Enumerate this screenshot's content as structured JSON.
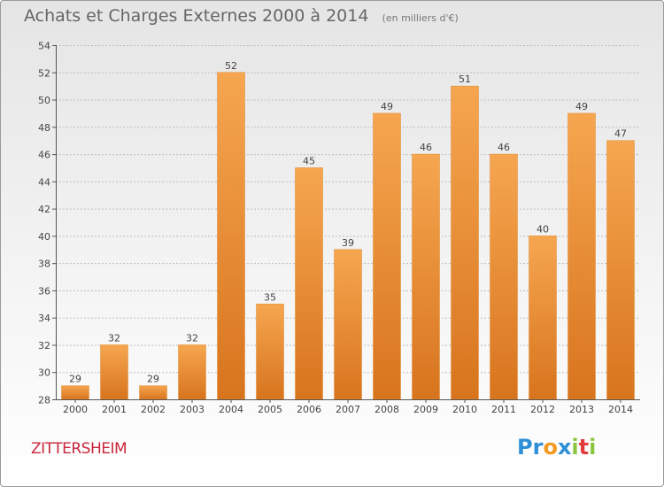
{
  "title": "Achats et Charges Externes 2000 à 2014",
  "subtitle": "(en milliers d'€)",
  "city": "ZITTERSHEIM",
  "logo": {
    "text": "Proxiti",
    "letters": [
      {
        "char": "P",
        "color": "#2e8fd6"
      },
      {
        "char": "r",
        "color": "#2e8fd6"
      },
      {
        "char": "o",
        "color": "#f29a1f"
      },
      {
        "char": "x",
        "color": "#2e8fd6"
      },
      {
        "char": "i",
        "color": "#8bc53f"
      },
      {
        "char": "t",
        "color": "#e23b3b"
      },
      {
        "char": "i",
        "color": "#8bc53f"
      }
    ]
  },
  "colors": {
    "bar_top": "#f6a650",
    "bar_bottom": "#d8741e",
    "axis": "#555555",
    "grid": "#bdbdbd",
    "text": "#444444"
  },
  "chart_data": {
    "type": "bar",
    "title": "Achats et Charges Externes 2000 à 2014",
    "subtitle": "(en milliers d'€)",
    "categories": [
      "2000",
      "2001",
      "2002",
      "2003",
      "2004",
      "2005",
      "2006",
      "2007",
      "2008",
      "2009",
      "2010",
      "2011",
      "2012",
      "2013",
      "2014"
    ],
    "values": [
      29,
      32,
      29,
      32,
      52,
      35,
      45,
      39,
      49,
      46,
      51,
      46,
      40,
      49,
      47
    ],
    "ylim": [
      28,
      54
    ],
    "yticks": [
      28,
      30,
      32,
      34,
      36,
      38,
      40,
      42,
      44,
      46,
      48,
      50,
      52,
      54
    ],
    "grid": true,
    "xlabel": "",
    "ylabel": ""
  }
}
